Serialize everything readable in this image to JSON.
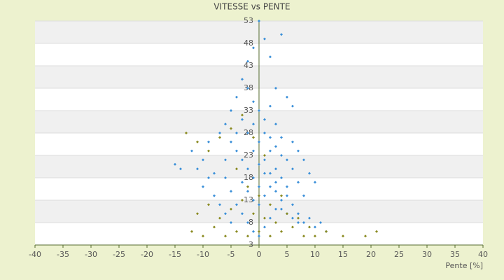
{
  "chart_data": {
    "type": "scatter",
    "title": "VITESSE vs PENTE",
    "x_label": "Pente [%]",
    "xlim": [
      -40,
      40
    ],
    "xticks": [
      -40,
      -35,
      -30,
      -25,
      -20,
      -15,
      -10,
      -5,
      0,
      5,
      10,
      15,
      20,
      25,
      30,
      35,
      40
    ],
    "ylim": [
      3,
      53
    ],
    "yticks": [
      3,
      8,
      13,
      18,
      23,
      28,
      33,
      38,
      43,
      48,
      53
    ],
    "grid": true,
    "series": [
      {
        "color": "#3a8fd8",
        "x": [
          -15,
          -14,
          -12,
          -10,
          -9,
          -8,
          -7,
          -6,
          -5,
          -4,
          -3,
          -2,
          -1,
          0,
          1,
          2,
          4,
          3,
          5,
          6,
          -6,
          -5,
          -4,
          -3,
          -2,
          -1,
          0,
          1,
          2,
          3,
          4,
          5,
          6,
          7,
          8,
          9,
          10,
          11,
          -4,
          -3,
          -2,
          -1,
          0,
          1,
          2,
          3,
          4,
          5,
          6,
          7,
          8,
          -2,
          -1,
          0,
          1,
          2,
          3,
          4,
          5,
          -3,
          -2,
          -1,
          0,
          1,
          2,
          3,
          4,
          5,
          6,
          7,
          -8,
          -7,
          -6,
          -5,
          -9,
          -10,
          -11,
          8,
          7,
          9,
          10,
          -1,
          0,
          1,
          -2,
          2,
          12,
          -3,
          4,
          3,
          6,
          -6,
          -5,
          -4,
          1,
          0,
          2,
          -1,
          3
        ],
        "values": [
          21,
          20,
          24,
          22,
          26,
          19,
          28,
          30,
          33,
          36,
          40,
          44,
          47,
          53,
          49,
          45,
          50,
          38,
          36,
          34,
          18,
          15,
          12,
          10,
          8,
          6,
          5,
          7,
          9,
          11,
          13,
          14,
          12,
          10,
          8,
          9,
          7,
          8,
          24,
          22,
          20,
          18,
          16,
          22,
          24,
          20,
          18,
          16,
          20,
          17,
          14,
          28,
          30,
          26,
          28,
          27,
          25,
          23,
          22,
          17,
          15,
          13,
          12,
          14,
          16,
          15,
          11,
          10,
          9,
          8,
          14,
          12,
          10,
          8,
          18,
          16,
          20,
          22,
          24,
          19,
          17,
          35,
          33,
          31,
          38,
          34,
          6,
          31,
          27,
          30,
          26,
          22,
          26,
          28,
          19,
          21,
          19,
          24,
          17
        ]
      },
      {
        "color": "#8a8a20",
        "x": [
          -12,
          -10,
          -8,
          -6,
          -4,
          -2,
          0,
          2,
          4,
          6,
          8,
          10,
          12,
          15,
          19,
          21,
          -11,
          -9,
          -7,
          -5,
          -3,
          -1,
          1,
          3,
          5,
          7,
          9,
          -13,
          -11,
          -9,
          -7,
          -5,
          -3,
          -1,
          1,
          -4,
          -2,
          0,
          2,
          4
        ],
        "values": [
          6,
          5,
          7,
          5,
          6,
          5,
          6,
          5,
          6,
          7,
          5,
          5,
          6,
          5,
          5,
          6,
          10,
          12,
          9,
          11,
          13,
          10,
          9,
          8,
          10,
          9,
          7,
          28,
          26,
          24,
          27,
          29,
          32,
          27,
          23,
          20,
          16,
          14,
          12,
          14
        ]
      }
    ]
  }
}
